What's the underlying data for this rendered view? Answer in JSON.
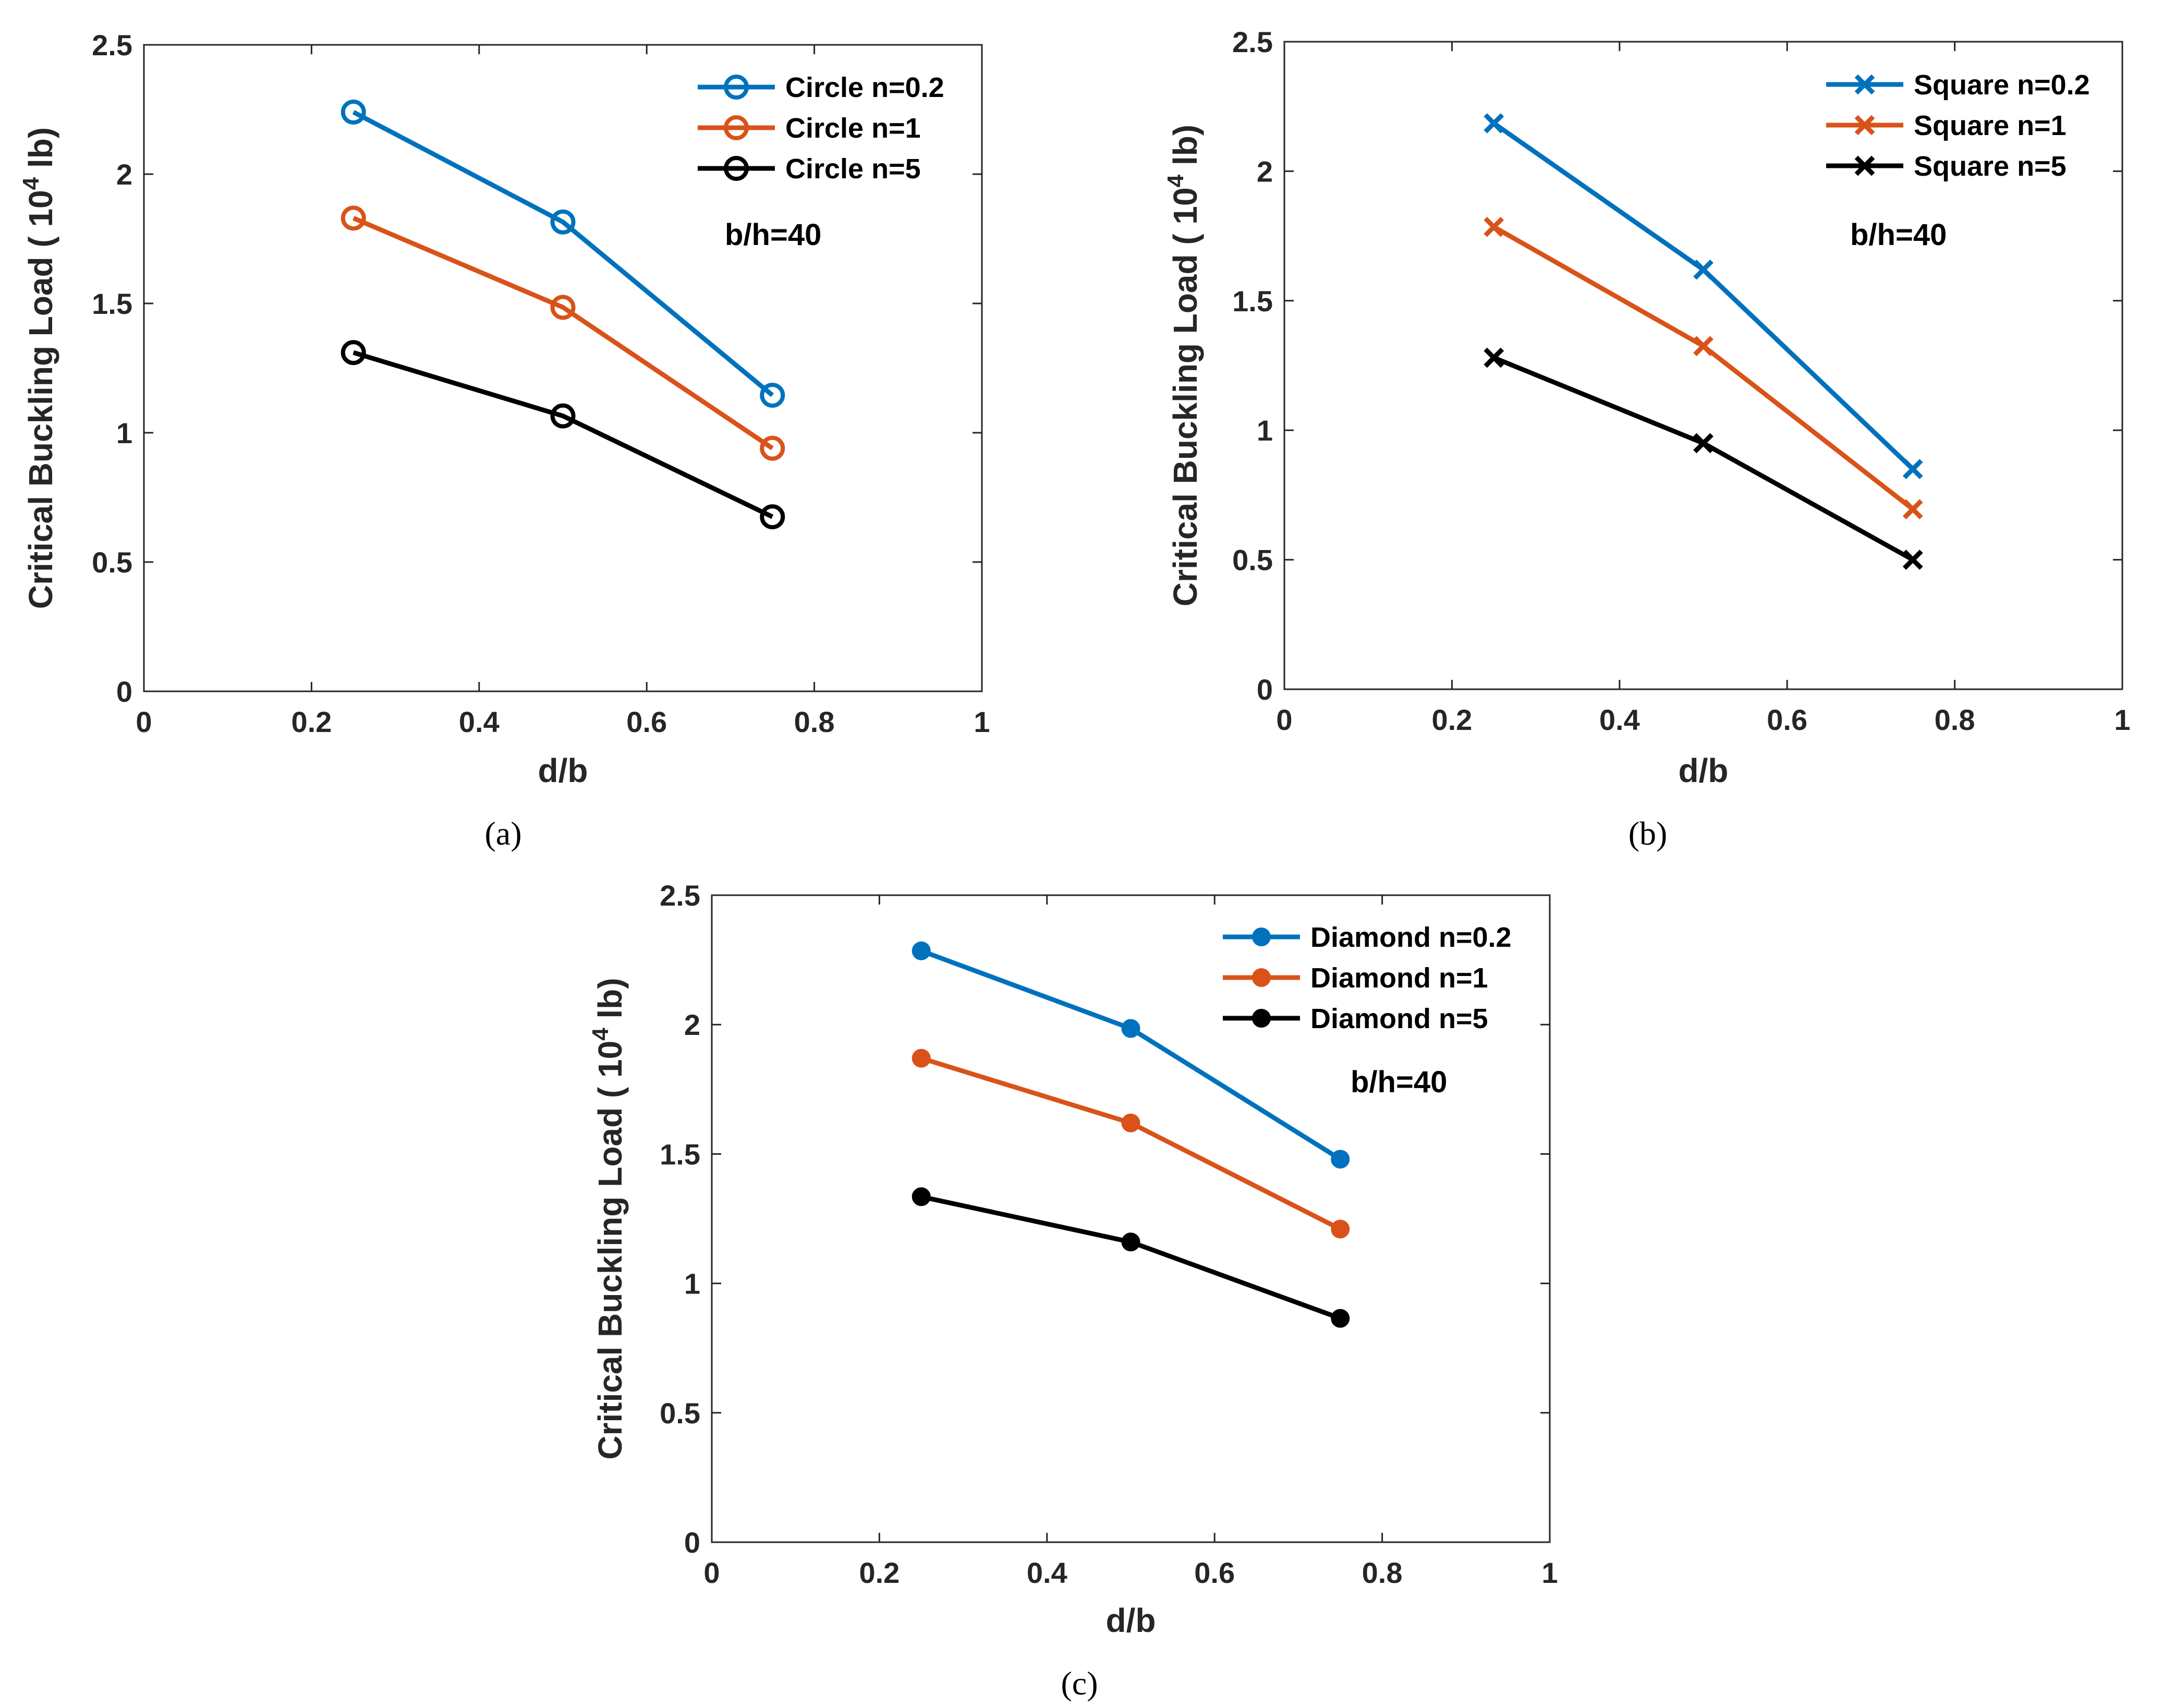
{
  "colors": {
    "blue": "#0072BD",
    "orange": "#D95319",
    "black": "#000000",
    "axis": "#262626"
  },
  "chart_data": [
    {
      "type": "line",
      "panel": "a",
      "caption": "(a)",
      "xlabel": "d/b",
      "ylabel_main": "Critical Buckling Load ( 10",
      "ylabel_sup": "4",
      "ylabel_end": " lb)",
      "xlim": [
        0,
        1
      ],
      "ylim": [
        0,
        2.5
      ],
      "xticks": [
        "0",
        "0.2",
        "0.4",
        "0.6",
        "0.8",
        "1"
      ],
      "yticks": [
        "0",
        "0.5",
        "1",
        "1.5",
        "2",
        "2.5"
      ],
      "annotation": "b/h=40",
      "marker": "circle-open",
      "x": [
        0.25,
        0.5,
        0.75
      ],
      "series": [
        {
          "name": "Circle n=0.2",
          "color": "#0072BD",
          "values": [
            2.24,
            1.815,
            1.145
          ]
        },
        {
          "name": "Circle n=1",
          "color": "#D95319",
          "values": [
            1.83,
            1.485,
            0.94
          ]
        },
        {
          "name": "Circle n=5",
          "color": "#000000",
          "values": [
            1.31,
            1.065,
            0.675
          ]
        }
      ]
    },
    {
      "type": "line",
      "panel": "b",
      "caption": "(b)",
      "xlabel": "d/b",
      "ylabel_main": "Critical Buckling Load ( 10",
      "ylabel_sup": "4",
      "ylabel_end": " lb)",
      "xlim": [
        0,
        1
      ],
      "ylim": [
        0,
        2.5
      ],
      "xticks": [
        "0",
        "0.2",
        "0.4",
        "0.6",
        "0.8",
        "1"
      ],
      "yticks": [
        "0",
        "0.5",
        "1",
        "1.5",
        "2",
        "2.5"
      ],
      "annotation": "b/h=40",
      "marker": "x",
      "x": [
        0.25,
        0.5,
        0.75
      ],
      "series": [
        {
          "name": "Square n=0.2",
          "color": "#0072BD",
          "values": [
            2.185,
            1.62,
            0.85
          ]
        },
        {
          "name": "Square n=1",
          "color": "#D95319",
          "values": [
            1.785,
            1.325,
            0.695
          ]
        },
        {
          "name": "Square n=5",
          "color": "#000000",
          "values": [
            1.28,
            0.95,
            0.5
          ]
        }
      ]
    },
    {
      "type": "line",
      "panel": "c",
      "caption": "(c)",
      "xlabel": "d/b",
      "ylabel_main": "Critical Buckling Load ( 10",
      "ylabel_sup": "4",
      "ylabel_end": " lb)",
      "xlim": [
        0,
        1
      ],
      "ylim": [
        0,
        2.5
      ],
      "xticks": [
        "0",
        "0.2",
        "0.4",
        "0.6",
        "0.8",
        "1"
      ],
      "yticks": [
        "0",
        "0.5",
        "1",
        "1.5",
        "2",
        "2.5"
      ],
      "annotation": "b/h=40",
      "marker": "circle-filled",
      "x": [
        0.25,
        0.5,
        0.75
      ],
      "series": [
        {
          "name": "Diamond n=0.2",
          "color": "#0072BD",
          "values": [
            2.285,
            1.985,
            1.48
          ]
        },
        {
          "name": "Diamond n=1",
          "color": "#D95319",
          "values": [
            1.87,
            1.62,
            1.21
          ]
        },
        {
          "name": "Diamond n=5",
          "color": "#000000",
          "values": [
            1.335,
            1.16,
            0.865
          ]
        }
      ]
    }
  ]
}
